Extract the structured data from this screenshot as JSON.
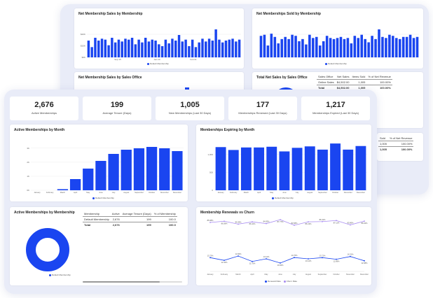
{
  "back": {
    "sales_chart": {
      "title": "Net Membership Sales by Membership",
      "legend": "Default Membership",
      "ticks": [
        "$0K",
        "$10K",
        "$20K"
      ],
      "xlabels": [
        "Sep 15",
        "Jan 20",
        "Feb 01"
      ]
    },
    "sold_chart": {
      "title": "Net Memberships Sold by Membership",
      "legend": "Default Membership"
    },
    "office_chart": {
      "title": "Net Membership Sales by Sales Office"
    },
    "office_table": {
      "title": "Total Net Sales by Sales Office",
      "headers": [
        "Sales Office",
        "Net Sales",
        "Items Sold",
        "% of Net Revenue"
      ],
      "rows": [
        [
          "Online Sales",
          "$4,502.00",
          "1,005",
          "100.00%"
        ]
      ],
      "total": [
        "Total",
        "$4,502.00",
        "1,005",
        "100.00%"
      ]
    },
    "frag_table": {
      "headers": [
        "Sold",
        "% of Net Revenue"
      ],
      "rows": [
        [
          "1,005",
          "100.00%"
        ]
      ],
      "total": [
        "1,005",
        "100.00%"
      ]
    }
  },
  "kpis": [
    {
      "value": "2,676",
      "label": "Active Memberships"
    },
    {
      "value": "199",
      "label": "Average Tenure (Days)"
    },
    {
      "value": "1,005",
      "label": "New Memberships (Last 30 Days)"
    },
    {
      "value": "177",
      "label": "Memberships Renewed (Last 30 Days)"
    },
    {
      "value": "1,217",
      "label": "Memberships Expired (Last 30 Days)"
    }
  ],
  "active_chart": {
    "title": "Active Memberships by Month",
    "legend": "Default Membership"
  },
  "expiring_chart": {
    "title": "Memberships Expiring by Month",
    "legend": "Default Membership"
  },
  "donut": {
    "title": "Active Memberships by Membership",
    "legend": "Default Membership"
  },
  "membership_table": {
    "headers": [
      "Membership",
      "Active",
      "Average Tenure (Days)",
      "% of Membership"
    ],
    "rows": [
      [
        "Default Membership",
        "2,676",
        "199",
        "100.0"
      ]
    ],
    "total": [
      "Total",
      "2,676",
      "199",
      "100.0"
    ]
  },
  "renewals": {
    "title": "Membership Renewals vs Churn",
    "legend_a": "Renewal Rate",
    "legend_b": "Churn Rate"
  },
  "colors": {
    "bar": "#1a45f0",
    "line_top": "#a78bf0",
    "line_bottom": "#1a45f0",
    "frame": "#e9ecf8"
  },
  "chart_data": [
    {
      "type": "bar",
      "title": "Active Memberships by Month",
      "categories": [
        "January",
        "February",
        "March",
        "April",
        "May",
        "June",
        "July",
        "August",
        "September",
        "October",
        "November",
        "December"
      ],
      "ticks": [
        "0K",
        "1K",
        "2K",
        "3K"
      ],
      "values": [
        0.0,
        0.0,
        0.08,
        0.8,
        1.55,
        2.1,
        2.6,
        2.9,
        3.0,
        3.1,
        3.0,
        2.8
      ],
      "ylim": [
        0,
        3.5
      ]
    },
    {
      "type": "bar",
      "title": "Memberships Expiring by Month",
      "categories": [
        "January",
        "February",
        "March",
        "April",
        "May",
        "June",
        "July",
        "August",
        "September",
        "October",
        "November",
        "December"
      ],
      "ticks": [
        "0",
        "500",
        "1,000"
      ],
      "values": [
        1200,
        1120,
        1190,
        1190,
        1210,
        1080,
        1180,
        1220,
        1130,
        1300,
        1130,
        1230
      ],
      "ylim": [
        0,
        1400
      ]
    },
    {
      "type": "line",
      "title": "Membership Renewals vs Churn",
      "categories": [
        "January",
        "February",
        "March",
        "April",
        "May",
        "June",
        "July",
        "August",
        "September",
        "October",
        "November",
        "December"
      ],
      "series": [
        {
          "name": "Renewal Rate",
          "values": [
            85.68,
            86.59,
            84.43,
            86.1,
            84.83,
            87.77,
            83.58,
            86.13,
            86.31,
            87.11,
            83.86,
            86.64
          ],
          "labels": [
            "85.68%",
            "86.59%",
            "84.43%",
            "86.10%",
            "84.83%",
            "87.77%",
            "83.58%",
            "86.13%",
            "86.31%",
            "87.11%",
            "83.86%",
            "86.64%"
          ]
        },
        {
          "name": "Churn Rate",
          "values": [
            13.72,
            12.32,
            14.56,
            11.75,
            13.11,
            10.92,
            13.76,
            13.11,
            13.71,
            12.89,
            14.31,
            12.08
          ],
          "labels": [
            "13.72%",
            "12.32%",
            "14.56%",
            "11.75%",
            "13.11%",
            "10.92%",
            "13.76%",
            "13.11%",
            "13.71%",
            "12.89%",
            "14.31%",
            "12.08%"
          ]
        }
      ]
    },
    {
      "type": "bar",
      "title": "Net Membership Sales by Membership",
      "values": [
        18,
        11,
        21,
        18,
        20,
        19,
        13,
        21,
        16,
        19,
        17,
        20,
        19,
        21,
        14,
        19,
        16,
        21,
        17,
        19,
        18,
        14,
        12,
        19,
        15,
        20,
        18,
        24,
        17,
        19,
        12,
        19,
        11,
        16,
        20,
        17,
        20,
        18,
        30,
        19,
        16,
        18,
        19,
        20,
        17,
        19
      ]
    },
    {
      "type": "bar",
      "title": "Net Memberships Sold by Membership",
      "values": [
        20,
        21,
        11,
        22,
        19,
        13,
        17,
        19,
        17,
        21,
        20,
        15,
        17,
        12,
        21,
        18,
        19,
        11,
        15,
        20,
        18,
        17,
        18,
        19,
        17,
        18,
        13,
        20,
        18,
        21,
        17,
        14,
        20,
        17,
        26,
        19,
        18,
        21,
        20,
        18,
        17,
        19,
        19,
        21,
        18,
        19
      ]
    }
  ]
}
